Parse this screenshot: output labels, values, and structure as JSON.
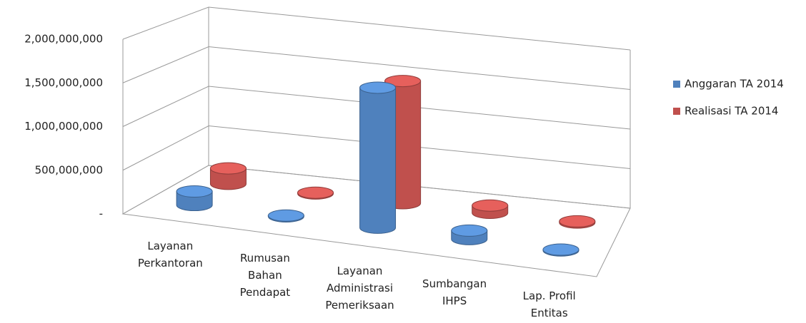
{
  "chart_data": {
    "type": "bar3d",
    "categories": [
      "Layanan Perkantoran",
      "Rumusan Bahan Pendapat",
      "Layanan Administrasi Pemeriksaan",
      "Sumbangan IHPS",
      "Lap. Profil Entitas"
    ],
    "series": [
      {
        "name": "Anggaran TA 2014",
        "color": "#4f81bd",
        "values": [
          160000000,
          10000000,
          1650000000,
          100000000,
          10000000
        ]
      },
      {
        "name": "Realisasi TA 2014",
        "color": "#c0504d",
        "values": [
          190000000,
          10000000,
          1500000000,
          90000000,
          15000000
        ]
      }
    ],
    "ylim": [
      0,
      2000000000
    ],
    "yticks": [
      {
        "value": 0,
        "label": "-"
      },
      {
        "value": 500000000,
        "label": "500,000,000"
      },
      {
        "value": 1000000000,
        "label": "1,000,000,000"
      },
      {
        "value": 1500000000,
        "label": "1,500,000,000"
      },
      {
        "value": 2000000000,
        "label": "2,000,000,000"
      }
    ],
    "grid": true,
    "legend": "right"
  }
}
